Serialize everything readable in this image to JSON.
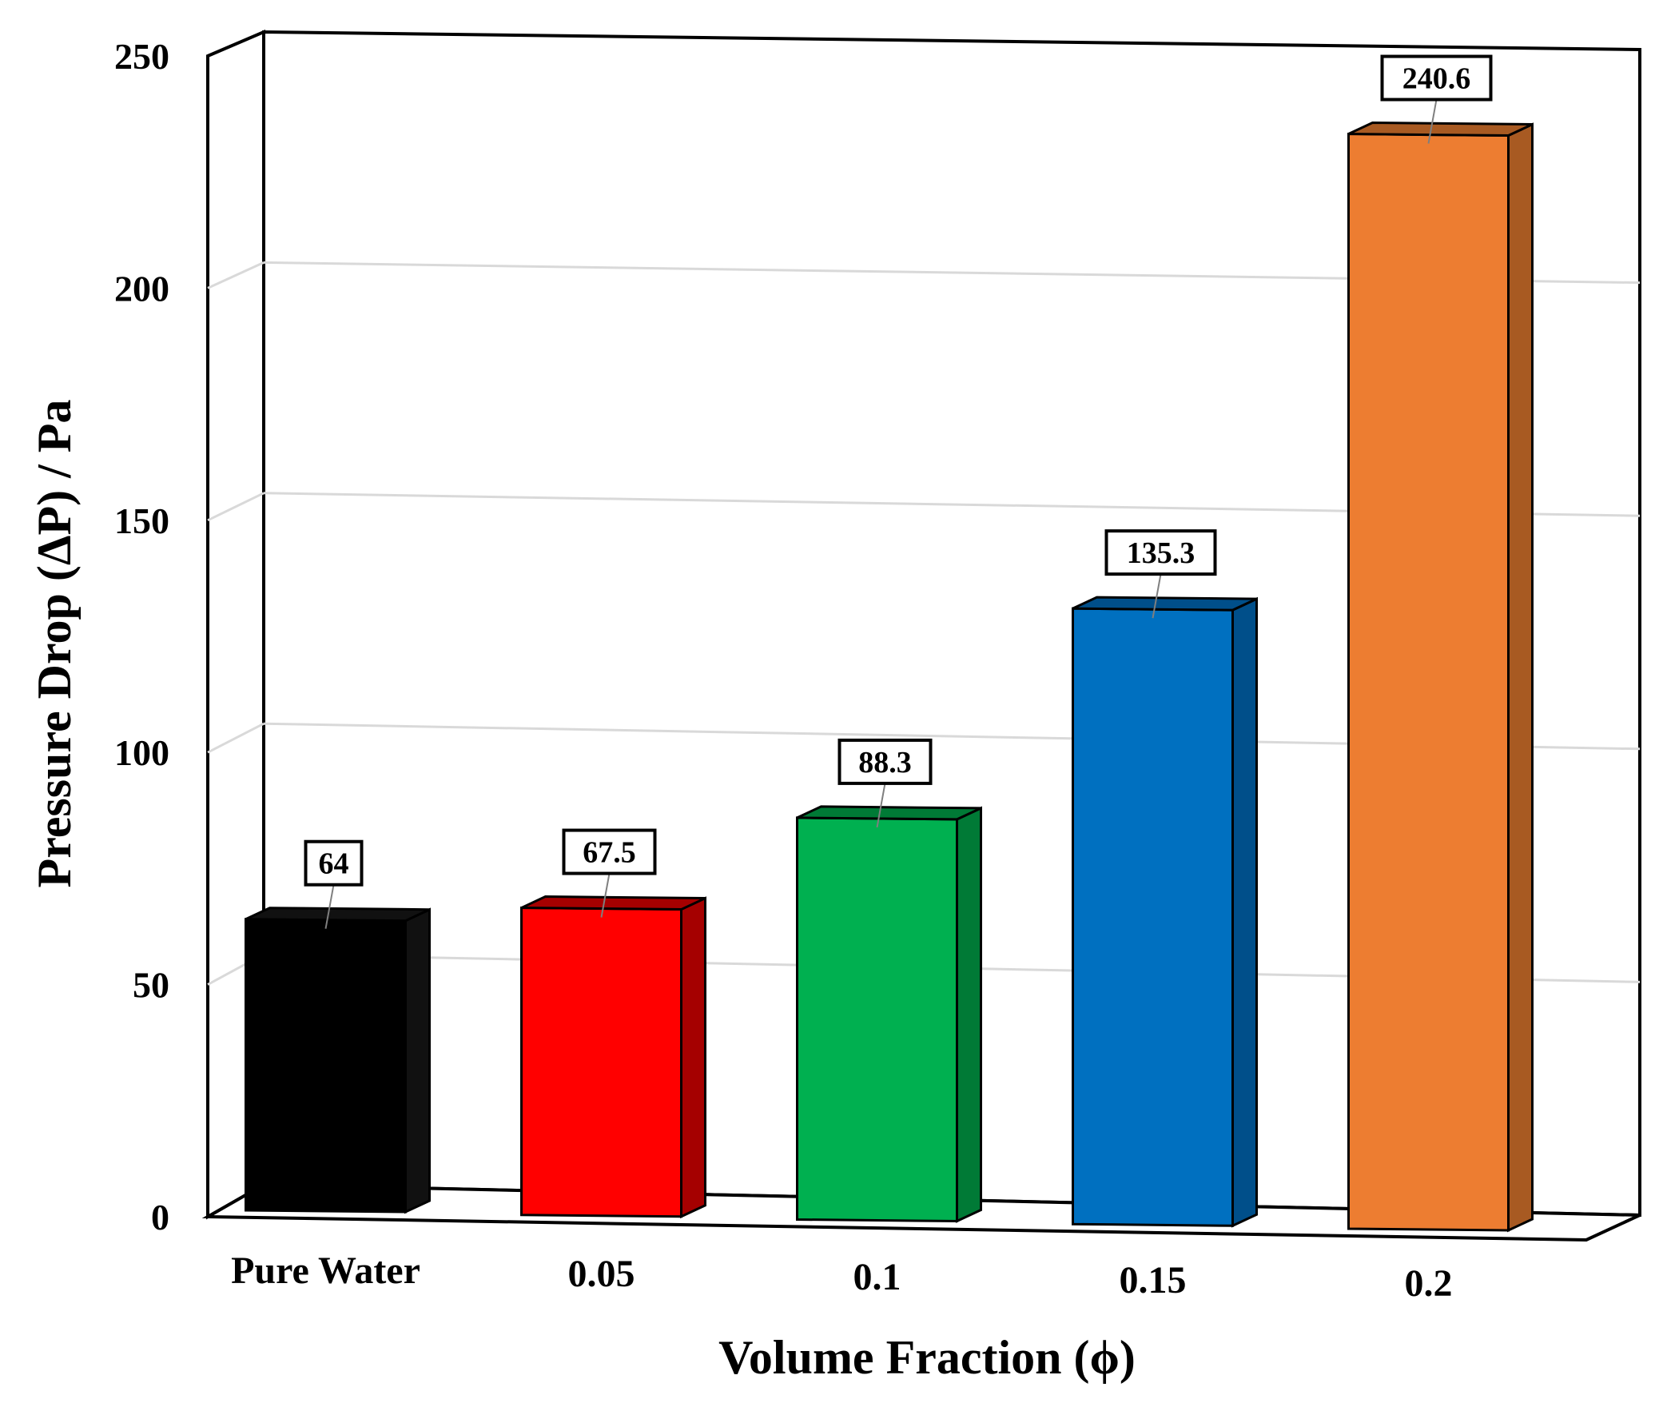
{
  "chart_data": {
    "type": "bar",
    "style": "3d",
    "title": "",
    "xlabel": "Volume Fraction (ϕ)",
    "ylabel": "Pressure Drop (ΔP) / Pa",
    "ylim": [
      0,
      250
    ],
    "yticks": [
      "0",
      "50",
      "100",
      "150",
      "200",
      "250"
    ],
    "categories": [
      "Pure Water",
      "0.05",
      "0.1",
      "0.15",
      "0.2"
    ],
    "values": [
      64,
      67.5,
      88.3,
      135.3,
      240.6
    ],
    "data_labels": [
      "64",
      "67.5",
      "88.3",
      "135.3",
      "240.6"
    ],
    "colors": [
      "#000000",
      "#ff0000",
      "#00b050",
      "#0070c0",
      "#ed7d31"
    ],
    "side_colors": [
      "#111111",
      "#a50000",
      "#007a36",
      "#004f8a",
      "#a85a22"
    ],
    "grid": true,
    "legend": "none"
  }
}
